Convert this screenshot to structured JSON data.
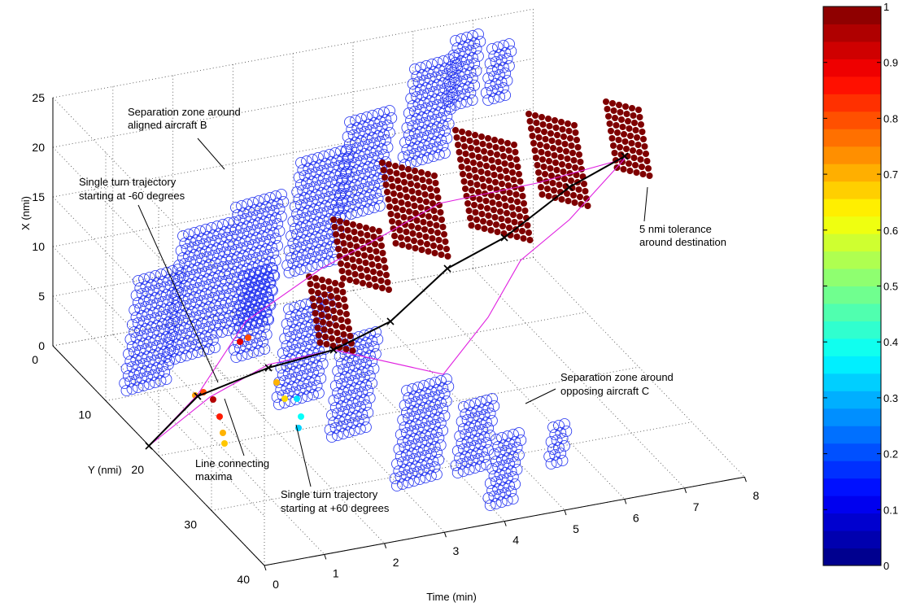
{
  "chart_data": {
    "type": "scatter",
    "title": "",
    "xlabel": "Time (min)",
    "ylabel": "Y (nmi)",
    "zlabel": "X (nmi)",
    "xlim": [
      0,
      8
    ],
    "ylim": [
      0,
      40
    ],
    "zlim": [
      0,
      25
    ],
    "time_ticks": [
      "0",
      "1",
      "2",
      "3",
      "4",
      "5",
      "6",
      "7",
      "8"
    ],
    "y_ticks": [
      "0",
      "10",
      "20",
      "30",
      "40"
    ],
    "z_ticks": [
      "0",
      "5",
      "10",
      "15",
      "20",
      "25"
    ],
    "grid": true,
    "colorbar": {
      "min": 0,
      "max": 1,
      "ticks": [
        "0",
        "0.1",
        "0.2",
        "0.3",
        "0.4",
        "0.5",
        "0.6",
        "0.7",
        "0.8",
        "0.9",
        "1"
      ],
      "levels": 32,
      "colormap": "jet"
    },
    "annotations": [
      {
        "lines": [
          "Separation zone around",
          "aligned aircraft B"
        ]
      },
      {
        "lines": [
          "Single turn trajectory",
          "starting at -60 degrees"
        ]
      },
      {
        "lines": [
          "Line connecting",
          "maxima"
        ]
      },
      {
        "lines": [
          "Single turn trajectory",
          "starting at +60 degrees"
        ]
      },
      {
        "lines": [
          "Separation zone around",
          "opposing aircraft C"
        ]
      },
      {
        "lines": [
          "5 nmi tolerance",
          "around destination"
        ]
      }
    ],
    "series": [
      {
        "name": "Separation zone around aligned aircraft B",
        "marker": "open-circle",
        "color": "#0000ff",
        "points": [
          {
            "t": 0.0,
            "y": 8,
            "z": 2
          },
          {
            "t": 1.0,
            "y": 8,
            "z": 2
          },
          {
            "t": 2.0,
            "y": 8,
            "z": 2
          },
          {
            "t": 3.0,
            "y": 8,
            "z": 2
          },
          {
            "t": 4.0,
            "y": 8,
            "z": 2
          },
          {
            "t": 5.0,
            "y": 8,
            "z": 2
          },
          {
            "t": 6.0,
            "y": 8,
            "z": 2
          },
          {
            "t": 7.0,
            "y": 8,
            "z": 2
          }
        ]
      },
      {
        "name": "Separation zone around opposing aircraft C",
        "marker": "open-circle",
        "color": "#0000ff",
        "points": [
          {
            "t": 2.5,
            "y": 14,
            "z": 3
          },
          {
            "t": 3.0,
            "y": 18,
            "z": 3
          },
          {
            "t": 3.5,
            "y": 22,
            "z": 3
          },
          {
            "t": 4.0,
            "y": 25,
            "z": 3
          },
          {
            "t": 4.5,
            "y": 28,
            "z": 3
          },
          {
            "t": 5.0,
            "y": 31,
            "z": 3
          }
        ]
      },
      {
        "name": "Line connecting maxima",
        "marker": "x-line",
        "color": "#000000",
        "points": [
          {
            "t": 0,
            "y": 20,
            "z": 5
          },
          {
            "t": 1,
            "y": 20,
            "z": 8
          },
          {
            "t": 2,
            "y": 20,
            "z": 10
          },
          {
            "t": 3,
            "y": 20,
            "z": 12
          },
          {
            "t": 4,
            "y": 20,
            "z": 15
          },
          {
            "t": 5,
            "y": 20,
            "z": 18
          },
          {
            "t": 6,
            "y": 20,
            "z": 20
          }
        ]
      }
    ]
  }
}
